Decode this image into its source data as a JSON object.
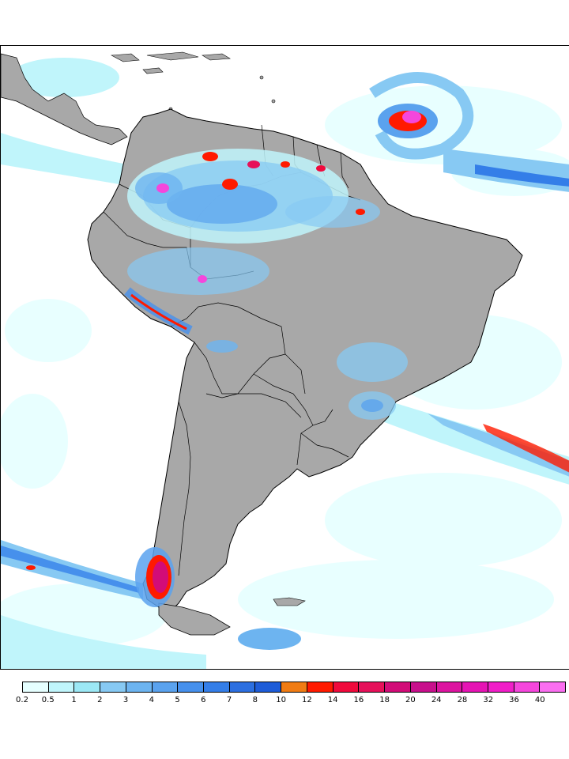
{
  "map": {
    "land_color": "#a8a8a8",
    "ocean_color": "#ffffff",
    "border_color": "#000000"
  },
  "legend": {
    "levels": [
      "0.2",
      "0.5",
      "1",
      "2",
      "3",
      "4",
      "5",
      "6",
      "7",
      "8",
      "10",
      "12",
      "14",
      "16",
      "18",
      "20",
      "24",
      "28",
      "32",
      "36",
      "40"
    ],
    "colors": [
      "#e6ffff",
      "#c0f5fb",
      "#9ce8f5",
      "#87c9f3",
      "#6db4f0",
      "#5aa2ee",
      "#4690ec",
      "#347ee8",
      "#2c6fe0",
      "#1e5cd8",
      "#f07c14",
      "#ff1a00",
      "#f00a3c",
      "#e6115a",
      "#d20c78",
      "#c8108c",
      "#dc14a0",
      "#e614b4",
      "#f01ec8",
      "#f546dc",
      "#fa6ef0"
    ]
  }
}
